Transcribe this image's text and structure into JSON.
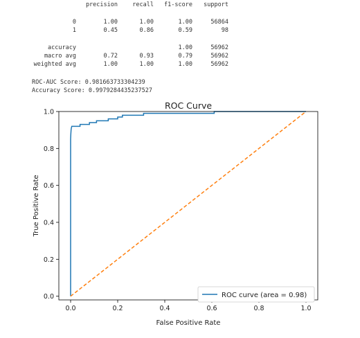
{
  "report": {
    "headers": [
      "precision",
      "recall",
      "f1-score",
      "support"
    ],
    "rows": [
      {
        "label": "0",
        "precision": "1.00",
        "recall": "1.00",
        "f1": "1.00",
        "support": "56864"
      },
      {
        "label": "1",
        "precision": "0.45",
        "recall": "0.86",
        "f1": "0.59",
        "support": "98"
      },
      {
        "label": "accuracy",
        "precision": "",
        "recall": "",
        "f1": "1.00",
        "support": "56962"
      },
      {
        "label": "macro avg",
        "precision": "0.72",
        "recall": "0.93",
        "f1": "0.79",
        "support": "56962"
      },
      {
        "label": "weighted avg",
        "precision": "1.00",
        "recall": "1.00",
        "f1": "1.00",
        "support": "56962"
      }
    ],
    "roc_auc_line": "ROC-AUC Score: 0.981663733304239",
    "accuracy_line": "Accuracy Score: 0.9979284435237527"
  },
  "chart_data": {
    "type": "line",
    "title": "ROC Curve",
    "xlabel": "False Positive Rate",
    "ylabel": "True Positive Rate",
    "xlim": [
      -0.05,
      1.05
    ],
    "ylim": [
      -0.02,
      1.0
    ],
    "xticks": [
      0.0,
      0.2,
      0.4,
      0.6,
      0.8,
      1.0
    ],
    "yticks": [
      0.0,
      0.2,
      0.4,
      0.6,
      0.8,
      1.0
    ],
    "xtick_labels": [
      "0.0",
      "0.2",
      "0.4",
      "0.6",
      "0.8",
      "1.0"
    ],
    "ytick_labels": [
      "0.0",
      "0.2",
      "0.4",
      "0.6",
      "0.8",
      "1.0"
    ],
    "grid": false,
    "legend_position": "lower-right",
    "series": [
      {
        "name": "ROC curve (area = 0.98)",
        "color": "#1f77b4",
        "style": "solid",
        "x": [
          0.0,
          0.0,
          0.0,
          0.001,
          0.002,
          0.003,
          0.004,
          0.005,
          0.006,
          0.01,
          0.01,
          0.04,
          0.04,
          0.08,
          0.08,
          0.11,
          0.11,
          0.16,
          0.16,
          0.2,
          0.2,
          0.22,
          0.22,
          0.31,
          0.31,
          0.61,
          0.61,
          1.0
        ],
        "y": [
          0.0,
          0.8,
          0.85,
          0.88,
          0.9,
          0.91,
          0.915,
          0.92,
          0.92,
          0.92,
          0.92,
          0.92,
          0.93,
          0.93,
          0.94,
          0.94,
          0.95,
          0.95,
          0.96,
          0.96,
          0.97,
          0.97,
          0.98,
          0.98,
          0.99,
          0.99,
          1.0,
          1.0
        ]
      },
      {
        "name": "",
        "color": "#ff7f0e",
        "style": "dashed",
        "x": [
          0.0,
          1.0
        ],
        "y": [
          0.0,
          1.0
        ]
      }
    ]
  }
}
